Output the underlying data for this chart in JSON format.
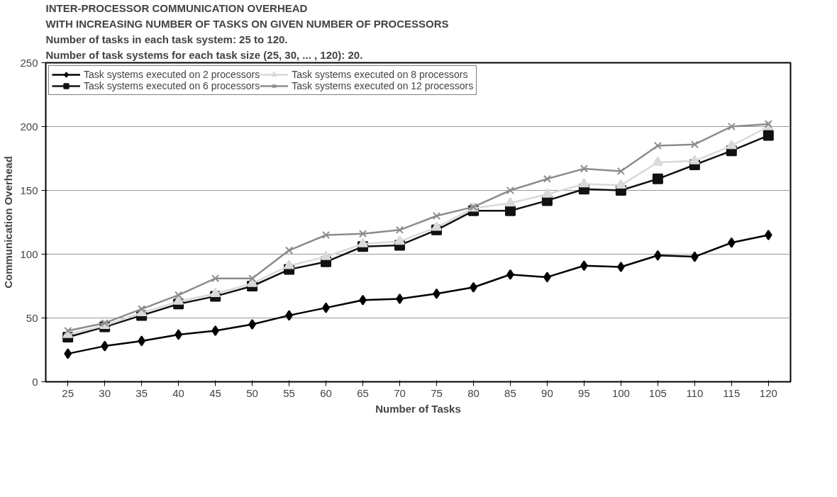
{
  "chart_data": {
    "type": "line",
    "title": "INTER-PROCESSOR COMMUNICATION OVERHEAD\nWITH INCREASING NUMBER OF TASKS ON GIVEN NUMBER OF PROCESSORS",
    "subtitle": "Number of tasks in each task system: 25 to 120.\nNumber of task systems for each task size (25, 30, ... , 120): 20.",
    "xlabel": "Number of Tasks",
    "ylabel": "Communication Overhead",
    "categories": [
      "25",
      "30",
      "35",
      "40",
      "45",
      "50",
      "55",
      "60",
      "65",
      "70",
      "75",
      "80",
      "85",
      "90",
      "95",
      "100",
      "105",
      "110",
      "115",
      "120"
    ],
    "series": [
      {
        "name": "Task systems executed on 2 processors",
        "color": "#000000",
        "marker": "diamond",
        "values": [
          22,
          28,
          32,
          37,
          40,
          45,
          52,
          58,
          64,
          65,
          69,
          74,
          84,
          82,
          91,
          90,
          99,
          98,
          109,
          115
        ]
      },
      {
        "name": "Task systems executed on 6 processors",
        "color": "#111111",
        "marker": "square",
        "values": [
          35,
          43,
          52,
          61,
          67,
          75,
          88,
          94,
          106,
          107,
          119,
          134,
          134,
          142,
          151,
          150,
          159,
          170,
          181,
          193
        ]
      },
      {
        "name": "Task systems executed on 8 processors",
        "color": "#d9d9d9",
        "marker": "triangle",
        "values": [
          37,
          44,
          54,
          63,
          69,
          77,
          91,
          98,
          108,
          110,
          121,
          136,
          140,
          147,
          155,
          154,
          172,
          173,
          185,
          200
        ]
      },
      {
        "name": "Task systems executed on 12 processors",
        "color": "#8c8c8c",
        "marker": "cross",
        "values": [
          40,
          46,
          57,
          68,
          81,
          81,
          103,
          115,
          116,
          119,
          130,
          137,
          150,
          159,
          167,
          165,
          185,
          186,
          200,
          202
        ]
      }
    ],
    "ylim": [
      0,
      250
    ],
    "yticks": [
      0,
      50,
      100,
      150,
      200,
      250
    ],
    "grid": "y",
    "legend": "top"
  }
}
